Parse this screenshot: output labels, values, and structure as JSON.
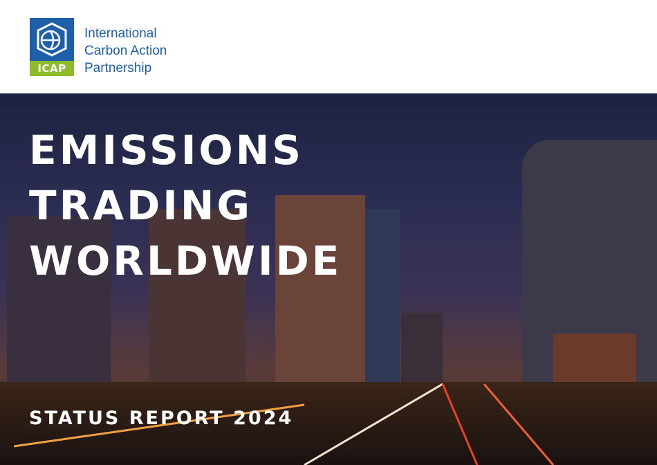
{
  "header": {
    "logo": {
      "abbr": "ICAP",
      "name_lines": [
        "International",
        "Carbon Action",
        "Partnership"
      ],
      "colors": {
        "blue": "#1d5fa8",
        "green": "#8cbb2c"
      },
      "icon": "globe-hexagon-icon"
    }
  },
  "cover": {
    "title_lines": [
      "EMISSIONS",
      "TRADING",
      "WORLDWIDE"
    ],
    "subtitle": "STATUS REPORT 2024"
  }
}
